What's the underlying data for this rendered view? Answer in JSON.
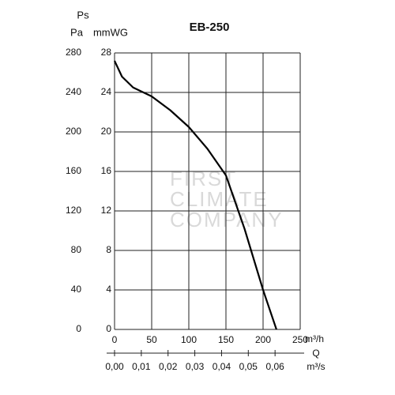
{
  "chart_data": {
    "type": "line",
    "title": "EB-250",
    "y_label_top": "Ps",
    "y_label": "Pa",
    "y2_label": "mmWG",
    "x_label": "m³/h",
    "q_label": "Q",
    "x2_label": "m³/s",
    "watermark": [
      "FIRST",
      "CLIMATE",
      "COMPANY"
    ],
    "x": [
      0,
      10,
      25,
      50,
      75,
      100,
      125,
      150,
      175,
      200,
      218
    ],
    "series": [
      {
        "color": "#000000",
        "values": [
          272,
          256,
          245,
          236,
          222,
          205,
          183,
          156,
          102,
          40,
          0
        ]
      }
    ],
    "xlim": [
      0,
      250
    ],
    "xticks": [
      0,
      50,
      100,
      150,
      200,
      250
    ],
    "ylim": [
      0,
      280
    ],
    "yticks": [
      0,
      40,
      80,
      120,
      160,
      200,
      240,
      280
    ],
    "y2lim": [
      0,
      28
    ],
    "y2ticks": [
      0,
      4,
      8,
      12,
      16,
      20,
      24,
      28
    ],
    "x2lim": [
      0,
      0.0694
    ],
    "x2ticks": [
      {
        "value": 0,
        "label": "0,00"
      },
      {
        "value": 0.01,
        "label": "0,01"
      },
      {
        "value": 0.02,
        "label": "0,02"
      },
      {
        "value": 0.03,
        "label": "0,03"
      },
      {
        "value": 0.04,
        "label": "0,04"
      },
      {
        "value": 0.05,
        "label": "0,05"
      },
      {
        "value": 0.06,
        "label": "0,06"
      }
    ],
    "grid": true
  }
}
